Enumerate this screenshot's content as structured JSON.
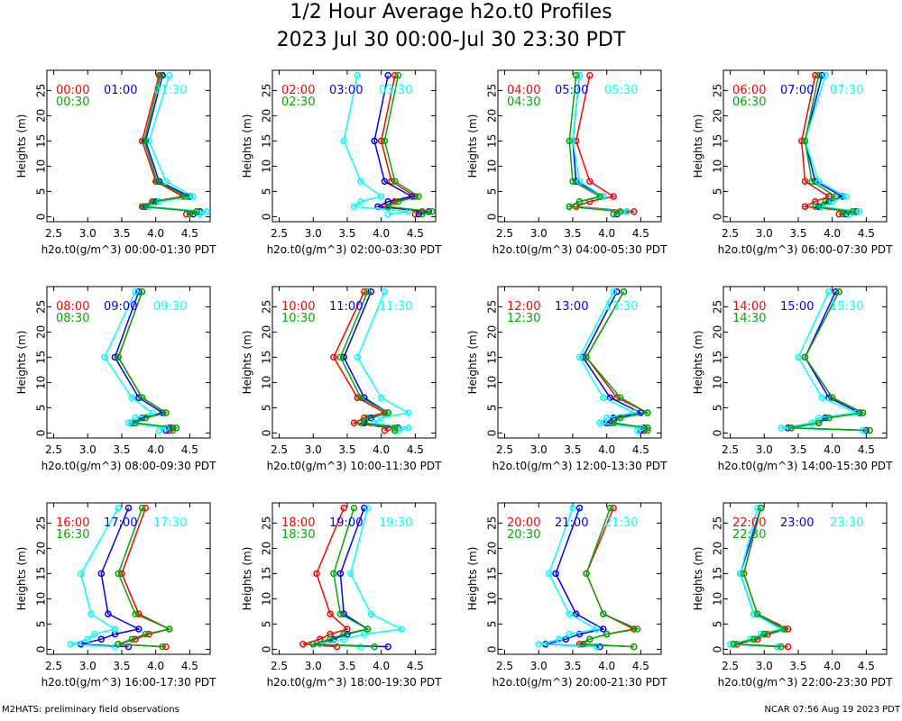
{
  "title": "1/2 Hour Average h2o.t0 Profiles",
  "subtitle": "2023 Jul 30 00:00-Jul 30 23:30 PDT",
  "footer_left": "M2HATS: preliminary field observations",
  "footer_right": "NCAR 07:56 Aug 19 2023 PDT",
  "colors": {
    "first": "#ff0000",
    "second": "#0000ff",
    "third": "#00ffff",
    "fourth": "#00aa00",
    "markers": "#000000"
  },
  "chart_data": [
    {
      "type": "line",
      "xlabel": "h2o.t0(g/m^3) 00:00-01:30 PDT",
      "ylabel": "Heights (m)",
      "xlim": [
        2.4,
        4.8
      ],
      "ylim": [
        -1,
        29
      ],
      "xticks": [
        "2.5",
        "3.0",
        "3.5",
        "4.0",
        "4.5"
      ],
      "yticks": [
        "0",
        "5",
        "10",
        "15",
        "20",
        "25"
      ],
      "heights": [
        0.5,
        1,
        2,
        3,
        4,
        7,
        15,
        28
      ],
      "series": [
        {
          "name": "00:00",
          "values": [
            4.45,
            4.6,
            3.8,
            3.95,
            4.4,
            4.0,
            3.8,
            4.05
          ]
        },
        {
          "name": "01:00",
          "values": [
            4.55,
            4.65,
            3.85,
            4.0,
            4.5,
            4.05,
            3.85,
            4.1
          ]
        },
        {
          "name": "01:30",
          "values": [
            4.65,
            4.75,
            3.9,
            4.05,
            4.55,
            4.15,
            3.9,
            4.2
          ]
        },
        {
          "name": "00:30",
          "values": [
            4.5,
            4.6,
            3.82,
            3.97,
            4.45,
            4.02,
            3.83,
            4.07
          ]
        }
      ]
    },
    {
      "type": "line",
      "xlabel": "h2o.t0(g/m^3) 02:00-03:30 PDT",
      "ylabel": "Heights (m)",
      "xlim": [
        2.4,
        4.8
      ],
      "ylim": [
        -1,
        29
      ],
      "xticks": [
        "2.5",
        "3.0",
        "3.5",
        "4.0",
        "4.5"
      ],
      "yticks": [
        "0",
        "5",
        "10",
        "15",
        "20",
        "25"
      ],
      "heights": [
        0.5,
        1,
        2,
        3,
        4,
        7,
        15,
        28
      ],
      "series": [
        {
          "name": "02:00",
          "values": [
            4.5,
            4.6,
            4.05,
            4.2,
            4.5,
            4.15,
            4.0,
            4.2
          ]
        },
        {
          "name": "03:00",
          "values": [
            4.55,
            4.7,
            3.95,
            4.1,
            4.45,
            4.05,
            3.9,
            4.1
          ]
        },
        {
          "name": "03:30",
          "values": [
            4.1,
            4.4,
            3.6,
            3.7,
            4.0,
            3.7,
            3.45,
            3.65
          ]
        },
        {
          "name": "02:30",
          "values": [
            4.6,
            4.75,
            4.1,
            4.25,
            4.55,
            4.2,
            4.05,
            4.25
          ]
        }
      ]
    },
    {
      "type": "line",
      "xlabel": "h2o.t0(g/m^3) 04:00-05:30 PDT",
      "ylabel": "Heights (m)",
      "xlim": [
        2.4,
        4.8
      ],
      "ylim": [
        -1,
        29
      ],
      "xticks": [
        "2.5",
        "3.0",
        "3.5",
        "4.0",
        "4.5"
      ],
      "yticks": [
        "0",
        "5",
        "10",
        "15",
        "20",
        "25"
      ],
      "heights": [
        0.5,
        1,
        2,
        3,
        4,
        7,
        15,
        28
      ],
      "series": [
        {
          "name": "04:00",
          "values": [
            4.1,
            4.4,
            3.55,
            3.75,
            4.1,
            3.75,
            3.55,
            3.75
          ]
        },
        {
          "name": "05:00",
          "values": [
            4.15,
            4.3,
            3.45,
            3.6,
            3.95,
            3.55,
            3.5,
            3.6
          ]
        },
        {
          "name": "05:30",
          "values": [
            4.1,
            4.3,
            3.45,
            3.6,
            3.95,
            3.6,
            3.5,
            3.6
          ]
        },
        {
          "name": "04:30",
          "values": [
            4.1,
            4.2,
            3.45,
            3.6,
            3.9,
            3.5,
            3.45,
            3.55
          ]
        }
      ]
    },
    {
      "type": "line",
      "xlabel": "h2o.t0(g/m^3) 06:00-07:30 PDT",
      "ylabel": "Heights (m)",
      "xlim": [
        2.4,
        4.8
      ],
      "ylim": [
        -1,
        29
      ],
      "xticks": [
        "2.5",
        "3.0",
        "3.5",
        "4.0",
        "4.5"
      ],
      "yticks": [
        "0",
        "5",
        "10",
        "15",
        "20",
        "25"
      ],
      "heights": [
        0.5,
        1,
        2,
        3,
        4,
        7,
        15,
        28
      ],
      "series": [
        {
          "name": "06:00",
          "values": [
            4.1,
            4.3,
            3.6,
            3.75,
            3.95,
            3.6,
            3.55,
            3.75
          ]
        },
        {
          "name": "07:00",
          "values": [
            4.2,
            4.35,
            3.8,
            3.95,
            4.15,
            3.75,
            3.6,
            3.85
          ]
        },
        {
          "name": "07:30",
          "values": [
            4.25,
            4.4,
            3.85,
            4.0,
            4.2,
            3.8,
            3.6,
            3.9
          ]
        },
        {
          "name": "06:30",
          "values": [
            4.15,
            4.3,
            3.75,
            3.9,
            4.05,
            3.7,
            3.6,
            3.8
          ]
        }
      ]
    },
    {
      "type": "line",
      "xlabel": "h2o.t0(g/m^3) 08:00-09:30 PDT",
      "ylabel": "Heights (m)",
      "xlim": [
        2.4,
        4.8
      ],
      "ylim": [
        -1,
        29
      ],
      "xticks": [
        "2.5",
        "3.0",
        "3.5",
        "4.0",
        "4.5"
      ],
      "yticks": [
        "0",
        "5",
        "10",
        "15",
        "20",
        "25"
      ],
      "heights": [
        0.5,
        1,
        2,
        3,
        4,
        7,
        15,
        28
      ],
      "series": [
        {
          "name": "08:00",
          "values": [
            4.2,
            4.25,
            3.7,
            3.85,
            4.15,
            3.8,
            3.45,
            3.8
          ]
        },
        {
          "name": "09:00",
          "values": [
            4.15,
            4.2,
            3.65,
            3.8,
            4.1,
            3.75,
            3.4,
            3.75
          ]
        },
        {
          "name": "09:30",
          "values": [
            4.05,
            4.15,
            3.6,
            3.7,
            3.95,
            3.65,
            3.25,
            3.7
          ]
        },
        {
          "name": "08:30",
          "values": [
            4.25,
            4.3,
            3.7,
            3.85,
            4.15,
            3.8,
            3.45,
            3.8
          ]
        }
      ]
    },
    {
      "type": "line",
      "xlabel": "h2o.t0(g/m^3) 10:00-11:30 PDT",
      "ylabel": "Heights (m)",
      "xlim": [
        2.4,
        4.8
      ],
      "ylim": [
        -1,
        29
      ],
      "xticks": [
        "2.5",
        "3.0",
        "3.5",
        "4.0",
        "4.5"
      ],
      "yticks": [
        "0",
        "5",
        "10",
        "15",
        "20",
        "25"
      ],
      "heights": [
        0.5,
        1,
        2,
        3,
        4,
        7,
        15,
        28
      ],
      "series": [
        {
          "name": "10:00",
          "values": [
            4.05,
            4.1,
            3.6,
            3.75,
            4.05,
            3.65,
            3.3,
            3.75
          ]
        },
        {
          "name": "11:00",
          "values": [
            4.2,
            4.25,
            3.75,
            3.85,
            4.1,
            3.75,
            3.45,
            3.85
          ]
        },
        {
          "name": "11:30",
          "values": [
            4.25,
            4.4,
            3.9,
            4.0,
            4.4,
            4.0,
            3.65,
            4.05
          ]
        },
        {
          "name": "10:30",
          "values": [
            4.2,
            4.2,
            3.7,
            3.8,
            4.1,
            3.7,
            3.4,
            3.8
          ]
        }
      ]
    },
    {
      "type": "line",
      "xlabel": "h2o.t0(g/m^3) 12:00-13:30 PDT",
      "ylabel": "Heights (m)",
      "xlim": [
        2.4,
        4.8
      ],
      "ylim": [
        -1,
        29
      ],
      "xticks": [
        "2.5",
        "3.0",
        "3.5",
        "4.0",
        "4.5"
      ],
      "yticks": [
        "0",
        "5",
        "10",
        "15",
        "20",
        "25"
      ],
      "heights": [
        0.5,
        1,
        2,
        3,
        4,
        7,
        15,
        28
      ],
      "series": [
        {
          "name": "12:00",
          "values": [
            4.55,
            4.6,
            4.05,
            4.2,
            4.6,
            4.15,
            3.7,
            4.25
          ]
        },
        {
          "name": "13:00",
          "values": [
            4.5,
            4.55,
            4.0,
            4.1,
            4.5,
            4.05,
            3.65,
            4.15
          ]
        },
        {
          "name": "13:30",
          "values": [
            4.45,
            4.5,
            3.9,
            4.0,
            4.4,
            3.95,
            3.6,
            4.1
          ]
        },
        {
          "name": "12:30",
          "values": [
            4.6,
            4.6,
            4.1,
            4.2,
            4.6,
            4.2,
            3.7,
            4.25
          ]
        }
      ]
    },
    {
      "type": "line",
      "xlabel": "h2o.t0(g/m^3) 14:00-15:30 PDT",
      "ylabel": "Heights (m)",
      "xlim": [
        2.4,
        4.8
      ],
      "ylim": [
        -1,
        29
      ],
      "xticks": [
        "2.5",
        "3.0",
        "3.5",
        "4.0",
        "4.5"
      ],
      "yticks": [
        "0",
        "5",
        "10",
        "15",
        "20",
        "25"
      ],
      "heights": [
        0.5,
        1,
        2,
        3,
        4,
        7,
        15,
        28
      ],
      "series": [
        {
          "name": "14:00",
          "values": [
            4.55,
            3.4,
            3.8,
            3.95,
            4.45,
            4.0,
            3.6,
            4.1
          ]
        },
        {
          "name": "15:00",
          "values": [
            4.5,
            3.35,
            3.8,
            3.9,
            4.4,
            3.95,
            3.6,
            4.05
          ]
        },
        {
          "name": "15:30",
          "values": [
            4.45,
            3.25,
            3.7,
            3.8,
            4.35,
            3.85,
            3.5,
            3.95
          ]
        },
        {
          "name": "14:30",
          "values": [
            4.55,
            3.4,
            3.8,
            3.95,
            4.45,
            4.0,
            3.6,
            4.1
          ]
        }
      ]
    },
    {
      "type": "line",
      "xlabel": "h2o.t0(g/m^3) 16:00-17:30 PDT",
      "ylabel": "Heights (m)",
      "xlim": [
        2.4,
        4.8
      ],
      "ylim": [
        -1,
        29
      ],
      "xticks": [
        "2.5",
        "3.0",
        "3.5",
        "4.0",
        "4.5"
      ],
      "yticks": [
        "0",
        "5",
        "10",
        "15",
        "20",
        "25"
      ],
      "heights": [
        0.5,
        1,
        2,
        3,
        4,
        7,
        15,
        28
      ],
      "series": [
        {
          "name": "16:00",
          "values": [
            4.15,
            3.45,
            3.7,
            3.9,
            4.2,
            3.75,
            3.5,
            3.85
          ]
        },
        {
          "name": "17:00",
          "values": [
            3.6,
            2.9,
            3.2,
            3.4,
            3.75,
            3.3,
            3.2,
            3.6
          ]
        },
        {
          "name": "17:30",
          "values": [
            3.4,
            2.75,
            3.0,
            3.1,
            3.4,
            3.05,
            2.9,
            3.45
          ]
        },
        {
          "name": "16:30",
          "values": [
            4.1,
            3.45,
            3.65,
            3.85,
            4.2,
            3.7,
            3.45,
            3.8
          ]
        }
      ]
    },
    {
      "type": "line",
      "xlabel": "h2o.t0(g/m^3) 18:00-19:30 PDT",
      "ylabel": "Heights (m)",
      "xlim": [
        2.4,
        4.8
      ],
      "ylim": [
        -1,
        29
      ],
      "xticks": [
        "2.5",
        "3.0",
        "3.5",
        "4.0",
        "4.5"
      ],
      "yticks": [
        "0",
        "5",
        "10",
        "15",
        "20",
        "25"
      ],
      "heights": [
        0.5,
        1,
        2,
        3,
        4,
        7,
        15,
        28
      ],
      "series": [
        {
          "name": "18:00",
          "values": [
            3.35,
            2.85,
            3.1,
            3.25,
            3.5,
            3.25,
            3.05,
            3.45
          ]
        },
        {
          "name": "19:00",
          "values": [
            4.1,
            3.0,
            3.3,
            3.5,
            3.8,
            3.45,
            3.4,
            3.75
          ]
        },
        {
          "name": "19:30",
          "values": [
            3.7,
            3.1,
            3.45,
            3.75,
            4.3,
            3.85,
            3.55,
            3.8
          ]
        },
        {
          "name": "18:30",
          "values": [
            3.9,
            3.0,
            3.25,
            3.45,
            3.8,
            3.4,
            3.3,
            3.6
          ]
        }
      ]
    },
    {
      "type": "line",
      "xlabel": "h2o.t0(g/m^3) 20:00-21:30 PDT",
      "ylabel": "Heights (m)",
      "xlim": [
        2.4,
        4.8
      ],
      "ylim": [
        -1,
        29
      ],
      "xticks": [
        "2.5",
        "3.0",
        "3.5",
        "4.0",
        "4.5"
      ],
      "yticks": [
        "0",
        "5",
        "10",
        "15",
        "20",
        "25"
      ],
      "heights": [
        0.5,
        1,
        2,
        3,
        4,
        7,
        15,
        28
      ],
      "series": [
        {
          "name": "20:00",
          "values": [
            4.4,
            3.6,
            3.75,
            4.0,
            4.4,
            3.95,
            3.7,
            4.1
          ]
        },
        {
          "name": "21:00",
          "values": [
            3.9,
            3.1,
            3.4,
            3.6,
            3.95,
            3.55,
            3.25,
            3.6
          ]
        },
        {
          "name": "21:30",
          "values": [
            3.85,
            3.0,
            3.3,
            3.45,
            3.85,
            3.45,
            3.15,
            3.5
          ]
        },
        {
          "name": "20:30",
          "values": [
            4.4,
            3.65,
            3.75,
            4.0,
            4.45,
            3.95,
            3.7,
            4.05
          ]
        }
      ]
    },
    {
      "type": "line",
      "xlabel": "h2o.t0(g/m^3) 22:00-23:30 PDT",
      "ylabel": "Heights (m)",
      "xlim": [
        2.4,
        4.8
      ],
      "ylim": [
        -1,
        29
      ],
      "xticks": [
        "2.5",
        "3.0",
        "3.5",
        "4.0",
        "4.5"
      ],
      "yticks": [
        "0",
        "5",
        "10",
        "15",
        "20",
        "25"
      ],
      "heights": [
        0.5,
        1,
        2,
        3,
        4,
        7,
        15,
        28
      ],
      "series": [
        {
          "name": "22:00",
          "values": [
            3.35,
            2.6,
            2.9,
            3.05,
            3.35,
            2.9,
            2.7,
            2.95
          ]
        },
        {
          "name": "23:00",
          "values": [
            3.2,
            2.55,
            2.85,
            3.0,
            3.3,
            2.85,
            2.65,
            2.95
          ]
        },
        {
          "name": "23:30",
          "values": [
            3.2,
            2.5,
            2.8,
            2.95,
            3.25,
            2.85,
            2.65,
            2.9
          ]
        },
        {
          "name": "22:30",
          "values": [
            3.25,
            2.55,
            2.85,
            3.0,
            3.3,
            2.9,
            2.7,
            2.95
          ]
        }
      ]
    }
  ]
}
